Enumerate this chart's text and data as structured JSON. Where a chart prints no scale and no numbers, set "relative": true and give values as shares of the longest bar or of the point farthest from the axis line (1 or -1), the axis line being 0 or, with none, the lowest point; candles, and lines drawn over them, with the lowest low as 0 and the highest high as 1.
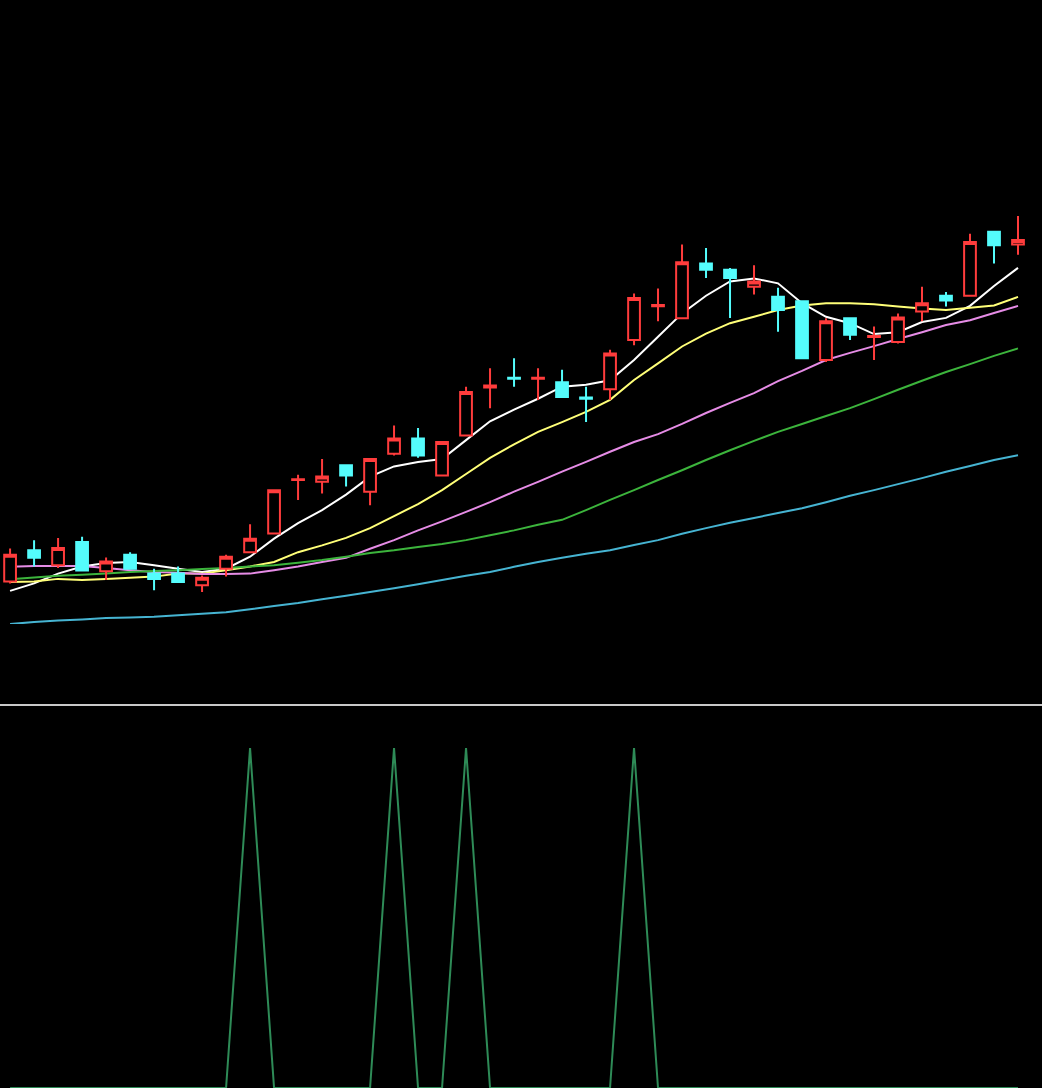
{
  "chart_data": [
    {
      "type": "candlestick",
      "relative": true,
      "categories": [
        null,
        null,
        null,
        null,
        null,
        null,
        null,
        null,
        null,
        null,
        null,
        null,
        null,
        null,
        null,
        null,
        null,
        null,
        null,
        null,
        null,
        null,
        null,
        null,
        null,
        null,
        null,
        null,
        null,
        null,
        null,
        null,
        null,
        null,
        null,
        null,
        null,
        null,
        null,
        null,
        null,
        null,
        null
      ],
      "ohlc": [
        [
          0.028,
          0.116,
          0.023,
          0.099
        ],
        [
          0.111,
          0.138,
          0.068,
          0.091
        ],
        [
          0.071,
          0.144,
          0.064,
          0.117
        ],
        [
          0.133,
          0.147,
          0.057,
          0.057
        ],
        [
          0.055,
          0.092,
          0.032,
          0.081
        ],
        [
          0.099,
          0.106,
          0.062,
          0.062
        ],
        [
          0.049,
          0.062,
          0.005,
          0.035
        ],
        [
          0.049,
          0.068,
          0.024,
          0.027
        ],
        [
          0.018,
          0.044,
          0.0,
          0.038
        ],
        [
          0.062,
          0.099,
          0.041,
          0.094
        ],
        [
          0.106,
          0.18,
          0.106,
          0.142
        ],
        [
          0.156,
          0.271,
          0.153,
          0.271
        ],
        [
          0.298,
          0.312,
          0.245,
          0.3
        ],
        [
          0.293,
          0.354,
          0.262,
          0.307
        ],
        [
          0.337,
          0.337,
          0.281,
          0.31
        ],
        [
          0.267,
          0.354,
          0.231,
          0.354
        ],
        [
          0.368,
          0.443,
          0.363,
          0.408
        ],
        [
          0.408,
          0.436,
          0.357,
          0.363
        ],
        [
          0.31,
          0.399,
          0.307,
          0.399
        ],
        [
          0.416,
          0.546,
          0.416,
          0.532
        ],
        [
          0.544,
          0.595,
          0.489,
          0.549
        ],
        [
          0.57,
          0.622,
          0.546,
          0.567
        ],
        [
          0.567,
          0.595,
          0.511,
          0.57
        ],
        [
          0.558,
          0.591,
          0.519,
          0.519
        ],
        [
          0.517,
          0.546,
          0.452,
          0.514
        ],
        [
          0.539,
          0.644,
          0.511,
          0.634
        ],
        [
          0.67,
          0.794,
          0.656,
          0.782
        ],
        [
          0.76,
          0.807,
          0.72,
          0.763
        ],
        [
          0.728,
          0.924,
          0.728,
          0.877
        ],
        [
          0.874,
          0.915,
          0.835,
          0.857
        ],
        [
          0.857,
          0.862,
          0.729,
          0.835
        ],
        [
          0.812,
          0.869,
          0.791,
          0.826
        ],
        [
          0.785,
          0.809,
          0.692,
          0.75
        ],
        [
          0.773,
          0.773,
          0.622,
          0.622
        ],
        [
          0.617,
          0.728,
          0.612,
          0.72
        ],
        [
          0.728,
          0.73,
          0.67,
          0.684
        ],
        [
          0.678,
          0.706,
          0.617,
          0.681
        ],
        [
          0.665,
          0.741,
          0.661,
          0.73
        ],
        [
          0.746,
          0.812,
          0.72,
          0.768
        ],
        [
          0.788,
          0.798,
          0.759,
          0.775
        ],
        [
          0.788,
          0.953,
          0.788,
          0.931
        ],
        [
          0.958,
          0.958,
          0.874,
          0.922
        ],
        [
          0.924,
          1.0,
          0.897,
          0.936
        ]
      ],
      "colors": [
        "#ff3c3c",
        "#54fcfc",
        "#ff3c3c",
        "#54fcfc",
        "#ff3c3c",
        "#54fcfc",
        "#54fcfc",
        "#54fcfc",
        "#ff3c3c",
        "#ff3c3c",
        "#ff3c3c",
        "#ff3c3c",
        "#ff3c3c",
        "#ff3c3c",
        "#54fcfc",
        "#ff3c3c",
        "#ff3c3c",
        "#54fcfc",
        "#ff3c3c",
        "#ff3c3c",
        "#ff3c3c",
        "#54fcfc",
        "#ff3c3c",
        "#54fcfc",
        "#54fcfc",
        "#ff3c3c",
        "#ff3c3c",
        "#ff3c3c",
        "#ff3c3c",
        "#54fcfc",
        "#54fcfc",
        "#ff3c3c",
        "#54fcfc",
        "#54fcfc",
        "#ff3c3c",
        "#54fcfc",
        "#ff3c3c",
        "#ff3c3c",
        "#ff3c3c",
        "#54fcfc",
        "#ff3c3c",
        "#54fcfc",
        "#ff3c3c"
      ],
      "series": [
        {
          "type": "line",
          "color": "#ffffff",
          "values": [
            0.003,
            0.023,
            0.049,
            0.068,
            0.077,
            0.08,
            0.071,
            0.062,
            0.053,
            0.062,
            0.094,
            0.142,
            0.183,
            0.218,
            0.259,
            0.307,
            0.334,
            0.346,
            0.354,
            0.404,
            0.454,
            0.485,
            0.514,
            0.546,
            0.551,
            0.563,
            0.617,
            0.679,
            0.741,
            0.788,
            0.826,
            0.834,
            0.821,
            0.768,
            0.732,
            0.715,
            0.686,
            0.691,
            0.718,
            0.729,
            0.761,
            0.814,
            0.862
          ]
        },
        {
          "type": "line",
          "color": "#ffff78",
          "values": [
            0.027,
            0.028,
            0.035,
            0.032,
            0.035,
            0.038,
            0.041,
            0.049,
            0.049,
            0.058,
            0.068,
            0.08,
            0.106,
            0.124,
            0.144,
            0.17,
            0.202,
            0.234,
            0.271,
            0.314,
            0.357,
            0.393,
            0.426,
            0.452,
            0.479,
            0.511,
            0.564,
            0.608,
            0.653,
            0.687,
            0.715,
            0.732,
            0.75,
            0.762,
            0.768,
            0.768,
            0.765,
            0.759,
            0.754,
            0.75,
            0.756,
            0.762,
            0.785
          ]
        },
        {
          "type": "line",
          "color": "#e68ce6",
          "values": [
            0.067,
            0.069,
            0.069,
            0.069,
            0.064,
            0.058,
            0.053,
            0.051,
            0.048,
            0.048,
            0.049,
            0.058,
            0.068,
            0.08,
            0.091,
            0.115,
            0.138,
            0.164,
            0.188,
            0.213,
            0.239,
            0.267,
            0.293,
            0.32,
            0.346,
            0.373,
            0.399,
            0.42,
            0.447,
            0.476,
            0.503,
            0.529,
            0.561,
            0.588,
            0.617,
            0.636,
            0.654,
            0.673,
            0.691,
            0.71,
            0.723,
            0.742,
            0.761
          ]
        },
        {
          "type": "line",
          "color": "#3cb43c",
          "values": [
            0.034,
            0.039,
            0.043,
            0.046,
            0.049,
            0.053,
            0.056,
            0.058,
            0.061,
            0.064,
            0.068,
            0.071,
            0.078,
            0.085,
            0.094,
            0.104,
            0.111,
            0.12,
            0.128,
            0.138,
            0.151,
            0.164,
            0.179,
            0.192,
            0.218,
            0.245,
            0.271,
            0.298,
            0.324,
            0.351,
            0.377,
            0.402,
            0.426,
            0.447,
            0.468,
            0.489,
            0.513,
            0.538,
            0.562,
            0.585,
            0.606,
            0.628,
            0.648
          ]
        },
        {
          "type": "line",
          "color": "#46b4d2",
          "values": [
            -0.085,
            -0.08,
            -0.076,
            -0.073,
            -0.069,
            -0.068,
            -0.066,
            -0.062,
            -0.058,
            -0.054,
            -0.046,
            -0.037,
            -0.029,
            -0.019,
            -0.01,
            0.0,
            0.01,
            0.021,
            0.032,
            0.043,
            0.053,
            0.067,
            0.08,
            0.091,
            0.102,
            0.111,
            0.125,
            0.138,
            0.155,
            0.17,
            0.184,
            0.197,
            0.21,
            0.223,
            0.239,
            0.256,
            0.271,
            0.287,
            0.303,
            0.32,
            0.335,
            0.351,
            0.364
          ]
        }
      ]
    },
    {
      "type": "line",
      "relative": true,
      "categories": [
        null,
        null,
        null,
        null,
        null,
        null,
        null,
        null,
        null,
        null,
        null,
        null,
        null,
        null,
        null,
        null,
        null,
        null,
        null,
        null,
        null,
        null,
        null,
        null,
        null,
        null,
        null,
        null,
        null,
        null,
        null,
        null,
        null,
        null,
        null,
        null,
        null,
        null,
        null,
        null,
        null,
        null,
        null
      ],
      "series": [
        {
          "type": "line",
          "color": "#2e8b57",
          "values": [
            0,
            0,
            0,
            0,
            0,
            0,
            0,
            0,
            0,
            0,
            1,
            0,
            0,
            0,
            0,
            0,
            1,
            0,
            0,
            1,
            0,
            0,
            0,
            0,
            0,
            0,
            1,
            0,
            0,
            0,
            0,
            0,
            0,
            0,
            0,
            0,
            0,
            0,
            0,
            0,
            0,
            0,
            0
          ]
        }
      ]
    }
  ]
}
